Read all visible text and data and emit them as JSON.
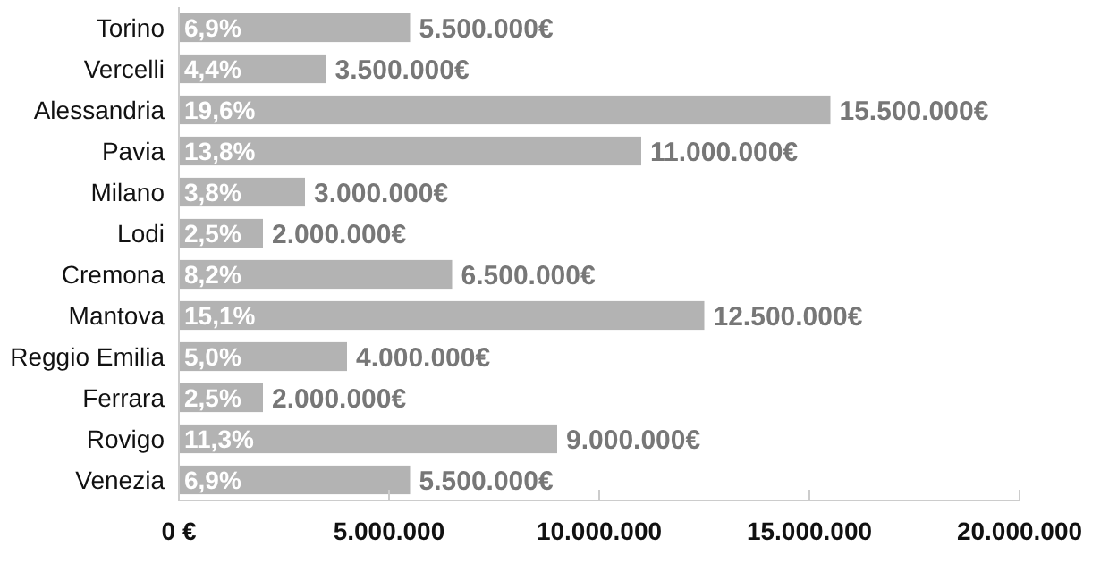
{
  "chart_data": {
    "type": "bar",
    "orientation": "horizontal",
    "categories": [
      "Torino",
      "Vercelli",
      "Alessandria",
      "Pavia",
      "Milano",
      "Lodi",
      "Cremona",
      "Mantova",
      "Reggio Emilia",
      "Ferrara",
      "Rovigo",
      "Venezia"
    ],
    "values": [
      5500000,
      3500000,
      15500000,
      11000000,
      3000000,
      2000000,
      6500000,
      12500000,
      4000000,
      2000000,
      9000000,
      5500000
    ],
    "value_labels": [
      "5.500.000€",
      "3.500.000€",
      "15.500.000€",
      "11.000.000€",
      "3.000.000€",
      "2.000.000€",
      "6.500.000€",
      "12.500.000€",
      "4.000.000€",
      "2.000.000€",
      "9.000.000€",
      "5.500.000€"
    ],
    "color": "#b3b3b3",
    "xlim": [
      0,
      20000000
    ],
    "xticks": [
      {
        "value": 0,
        "label": "0 €"
      },
      {
        "value": 5000000,
        "label": "5.000.000"
      },
      {
        "value": 10000000,
        "label": "10.000.000"
      },
      {
        "value": 15000000,
        "label": "15.000.000"
      },
      {
        "value": 20000000,
        "label": "20.000.000"
      }
    ],
    "grid": false,
    "annotations": [
      {
        "text": "6,9%",
        "y": "Torino"
      },
      {
        "text": "4,4%",
        "y": "Vercelli"
      },
      {
        "text": "19,6%",
        "y": "Alessandria"
      },
      {
        "text": "13,8%",
        "y": "Pavia"
      },
      {
        "text": "3,8%",
        "y": "Milano"
      },
      {
        "text": "2,5%",
        "y": "Lodi"
      },
      {
        "text": "8,2%",
        "y": "Cremona"
      },
      {
        "text": "15,1%",
        "y": "Mantova"
      },
      {
        "text": "5,0%",
        "y": "Reggio Emilia"
      },
      {
        "text": "2,5%",
        "y": "Ferrara"
      },
      {
        "text": "11,3%",
        "y": "Rovigo"
      },
      {
        "text": "6,9%",
        "y": "Venezia"
      }
    ]
  }
}
